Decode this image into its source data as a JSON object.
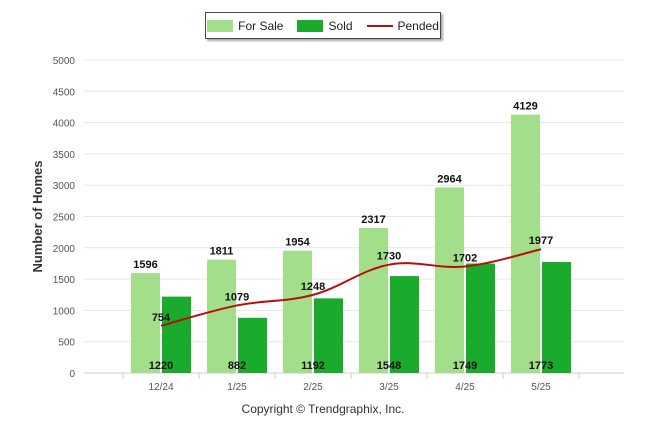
{
  "colors": {
    "for_sale": "#a3df8a",
    "sold": "#1aaa2c",
    "pended": "#b80d0d",
    "grid": "#e6e6e6",
    "axis_text": "#555555"
  },
  "legend": {
    "for_sale": "For Sale",
    "sold": "Sold",
    "pended": "Pended"
  },
  "footer": "Copyright © Trendgraphix, Inc.",
  "chart_data": {
    "type": "bar",
    "ylabel": "Number of Homes",
    "xlabel": "",
    "ylim": [
      0,
      5000
    ],
    "yticks": [
      0,
      500,
      1000,
      1500,
      2000,
      2500,
      3000,
      3500,
      4000,
      4500,
      5000
    ],
    "grid": true,
    "legend_position": "top-center",
    "categories": [
      "12/24",
      "1/25",
      "2/25",
      "3/25",
      "4/25",
      "5/25"
    ],
    "series": [
      {
        "name": "For Sale",
        "type": "bar",
        "values": [
          1596,
          1811,
          1954,
          2317,
          2964,
          4129
        ]
      },
      {
        "name": "Sold",
        "type": "bar",
        "values": [
          1220,
          882,
          1192,
          1548,
          1749,
          1773
        ]
      },
      {
        "name": "Pended",
        "type": "line",
        "values": [
          754,
          1079,
          1248,
          1730,
          1702,
          1977
        ]
      }
    ]
  }
}
